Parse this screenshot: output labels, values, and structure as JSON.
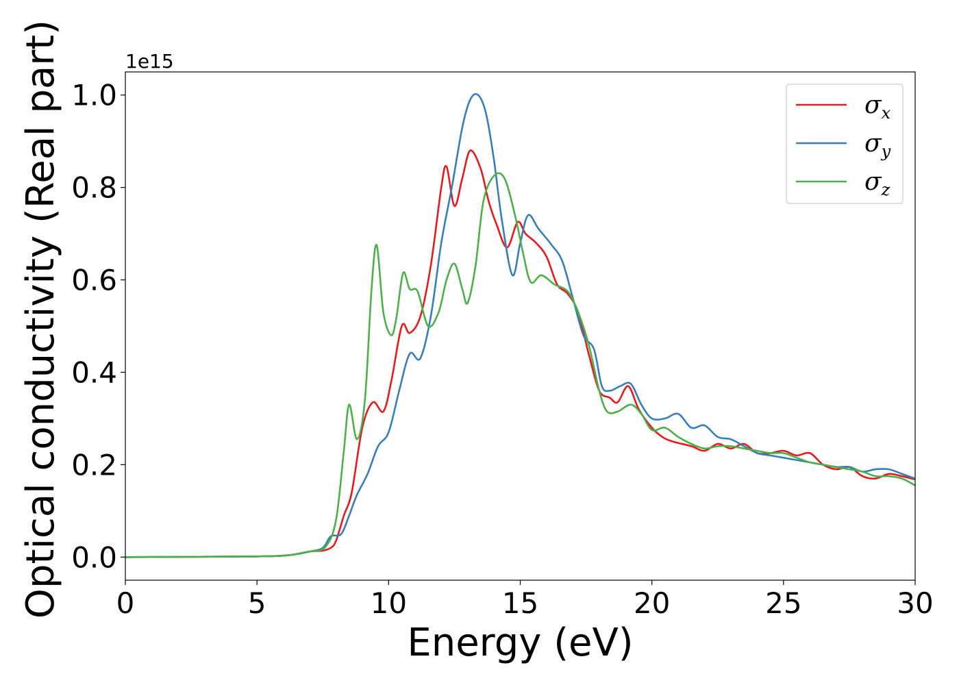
{
  "chart_data": {
    "type": "line",
    "title": "",
    "xlabel": "Energy (eV)",
    "ylabel": "Optical conductivity (Real part)",
    "y_offset_label": "1e15",
    "xlim": [
      0,
      30
    ],
    "ylim": [
      -0.05,
      1.05
    ],
    "xticks": [
      0,
      5,
      10,
      15,
      20,
      25,
      30
    ],
    "xtick_labels": [
      "0",
      "5",
      "10",
      "15",
      "20",
      "25",
      "30"
    ],
    "yticks": [
      0.0,
      0.2,
      0.4,
      0.6,
      0.8,
      1.0
    ],
    "ytick_labels": [
      "0.0",
      "0.2",
      "0.4",
      "0.6",
      "0.8",
      "1.0"
    ],
    "grid": false,
    "legend_position": "top-right",
    "series": [
      {
        "name": "σx",
        "legend_symbol": "σ",
        "legend_subscript": "x",
        "color": "#e41a1c",
        "points": [
          [
            0,
            0.0
          ],
          [
            4,
            0.001
          ],
          [
            6,
            0.003
          ],
          [
            7,
            0.012
          ],
          [
            7.5,
            0.014
          ],
          [
            7.8,
            0.02
          ],
          [
            8.0,
            0.035
          ],
          [
            8.3,
            0.09
          ],
          [
            8.6,
            0.14
          ],
          [
            9.0,
            0.28
          ],
          [
            9.4,
            0.335
          ],
          [
            9.8,
            0.315
          ],
          [
            10.1,
            0.38
          ],
          [
            10.5,
            0.5
          ],
          [
            10.8,
            0.485
          ],
          [
            11.2,
            0.52
          ],
          [
            11.6,
            0.63
          ],
          [
            12.0,
            0.8
          ],
          [
            12.2,
            0.845
          ],
          [
            12.5,
            0.76
          ],
          [
            12.8,
            0.82
          ],
          [
            13.1,
            0.88
          ],
          [
            13.5,
            0.84
          ],
          [
            13.8,
            0.77
          ],
          [
            14.1,
            0.72
          ],
          [
            14.5,
            0.67
          ],
          [
            14.9,
            0.725
          ],
          [
            15.2,
            0.7
          ],
          [
            15.6,
            0.68
          ],
          [
            16.0,
            0.65
          ],
          [
            16.4,
            0.59
          ],
          [
            16.8,
            0.57
          ],
          [
            17.2,
            0.53
          ],
          [
            17.6,
            0.44
          ],
          [
            18.0,
            0.36
          ],
          [
            18.4,
            0.345
          ],
          [
            18.7,
            0.335
          ],
          [
            19.1,
            0.37
          ],
          [
            19.5,
            0.32
          ],
          [
            20.0,
            0.28
          ],
          [
            20.4,
            0.26
          ],
          [
            20.8,
            0.25
          ],
          [
            21.5,
            0.24
          ],
          [
            22,
            0.23
          ],
          [
            22.5,
            0.245
          ],
          [
            23,
            0.235
          ],
          [
            23.5,
            0.245
          ],
          [
            24,
            0.225
          ],
          [
            24.5,
            0.225
          ],
          [
            25,
            0.23
          ],
          [
            25.5,
            0.22
          ],
          [
            26,
            0.225
          ],
          [
            26.5,
            0.2
          ],
          [
            27,
            0.19
          ],
          [
            27.5,
            0.195
          ],
          [
            28,
            0.175
          ],
          [
            28.5,
            0.17
          ],
          [
            29,
            0.18
          ],
          [
            29.5,
            0.175
          ],
          [
            30,
            0.168
          ]
        ]
      },
      {
        "name": "σy",
        "legend_symbol": "σ",
        "legend_subscript": "y",
        "color": "#377eb8",
        "points": [
          [
            0,
            0.0
          ],
          [
            4,
            0.001
          ],
          [
            6,
            0.003
          ],
          [
            7,
            0.012
          ],
          [
            7.5,
            0.02
          ],
          [
            7.8,
            0.045
          ],
          [
            8.2,
            0.05
          ],
          [
            8.5,
            0.09
          ],
          [
            8.8,
            0.135
          ],
          [
            9.2,
            0.18
          ],
          [
            9.6,
            0.24
          ],
          [
            10.0,
            0.27
          ],
          [
            10.4,
            0.36
          ],
          [
            10.8,
            0.44
          ],
          [
            11.2,
            0.43
          ],
          [
            11.6,
            0.52
          ],
          [
            12.0,
            0.68
          ],
          [
            12.4,
            0.8
          ],
          [
            12.8,
            0.93
          ],
          [
            13.1,
            0.99
          ],
          [
            13.4,
            1.0
          ],
          [
            13.7,
            0.96
          ],
          [
            14.0,
            0.86
          ],
          [
            14.3,
            0.73
          ],
          [
            14.7,
            0.61
          ],
          [
            15.0,
            0.68
          ],
          [
            15.3,
            0.74
          ],
          [
            15.7,
            0.71
          ],
          [
            16.2,
            0.675
          ],
          [
            16.6,
            0.64
          ],
          [
            17.0,
            0.56
          ],
          [
            17.4,
            0.48
          ],
          [
            17.8,
            0.45
          ],
          [
            18.1,
            0.37
          ],
          [
            18.4,
            0.36
          ],
          [
            18.8,
            0.37
          ],
          [
            19.2,
            0.375
          ],
          [
            19.6,
            0.33
          ],
          [
            20,
            0.3
          ],
          [
            20.5,
            0.3
          ],
          [
            21,
            0.31
          ],
          [
            21.5,
            0.28
          ],
          [
            22,
            0.285
          ],
          [
            22.5,
            0.26
          ],
          [
            23,
            0.255
          ],
          [
            23.5,
            0.24
          ],
          [
            24,
            0.225
          ],
          [
            24.5,
            0.22
          ],
          [
            25,
            0.215
          ],
          [
            25.5,
            0.21
          ],
          [
            26,
            0.205
          ],
          [
            26.5,
            0.2
          ],
          [
            27,
            0.195
          ],
          [
            27.5,
            0.195
          ],
          [
            28,
            0.185
          ],
          [
            28.5,
            0.19
          ],
          [
            29,
            0.19
          ],
          [
            29.5,
            0.18
          ],
          [
            30,
            0.17
          ]
        ]
      },
      {
        "name": "σz",
        "legend_symbol": "σ",
        "legend_subscript": "z",
        "color": "#4daf4a",
        "points": [
          [
            0,
            0.0
          ],
          [
            4,
            0.001
          ],
          [
            6,
            0.003
          ],
          [
            7,
            0.012
          ],
          [
            7.6,
            0.022
          ],
          [
            8.0,
            0.08
          ],
          [
            8.3,
            0.23
          ],
          [
            8.5,
            0.33
          ],
          [
            8.8,
            0.255
          ],
          [
            9.1,
            0.34
          ],
          [
            9.35,
            0.58
          ],
          [
            9.55,
            0.675
          ],
          [
            9.8,
            0.53
          ],
          [
            10.1,
            0.48
          ],
          [
            10.3,
            0.52
          ],
          [
            10.55,
            0.615
          ],
          [
            10.8,
            0.58
          ],
          [
            11.1,
            0.575
          ],
          [
            11.5,
            0.5
          ],
          [
            11.9,
            0.53
          ],
          [
            12.2,
            0.6
          ],
          [
            12.5,
            0.635
          ],
          [
            12.8,
            0.58
          ],
          [
            13.0,
            0.55
          ],
          [
            13.3,
            0.63
          ],
          [
            13.6,
            0.77
          ],
          [
            14.0,
            0.825
          ],
          [
            14.4,
            0.82
          ],
          [
            14.8,
            0.74
          ],
          [
            15.1,
            0.66
          ],
          [
            15.4,
            0.595
          ],
          [
            15.8,
            0.61
          ],
          [
            16.3,
            0.59
          ],
          [
            16.8,
            0.575
          ],
          [
            17.2,
            0.53
          ],
          [
            17.6,
            0.46
          ],
          [
            18.0,
            0.36
          ],
          [
            18.3,
            0.315
          ],
          [
            18.7,
            0.315
          ],
          [
            19.2,
            0.33
          ],
          [
            19.6,
            0.31
          ],
          [
            20.0,
            0.275
          ],
          [
            20.5,
            0.28
          ],
          [
            21,
            0.26
          ],
          [
            21.5,
            0.245
          ],
          [
            22,
            0.235
          ],
          [
            22.5,
            0.24
          ],
          [
            23,
            0.24
          ],
          [
            23.5,
            0.235
          ],
          [
            24,
            0.23
          ],
          [
            24.5,
            0.225
          ],
          [
            25,
            0.225
          ],
          [
            25.5,
            0.215
          ],
          [
            26,
            0.205
          ],
          [
            26.5,
            0.2
          ],
          [
            27,
            0.195
          ],
          [
            27.5,
            0.19
          ],
          [
            28,
            0.185
          ],
          [
            28.5,
            0.175
          ],
          [
            29,
            0.175
          ],
          [
            29.5,
            0.17
          ],
          [
            30,
            0.155
          ]
        ]
      }
    ]
  }
}
